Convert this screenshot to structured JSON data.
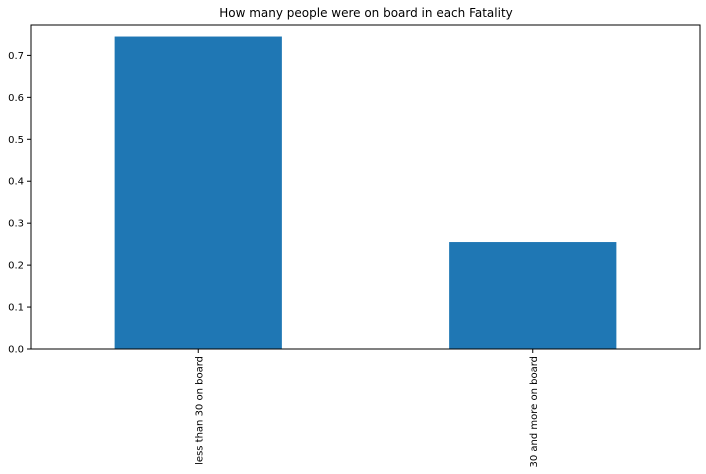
{
  "chart_data": {
    "type": "bar",
    "title": "How many people were on board in each Fatality",
    "xlabel": "",
    "ylabel": "",
    "categories": [
      "less than 30 on board",
      "30 and more on board"
    ],
    "values": [
      0.745,
      0.255
    ],
    "ylim": [
      0,
      0.7725
    ],
    "yticks": [
      0.0,
      0.1,
      0.2,
      0.3,
      0.4,
      0.5,
      0.6,
      0.7
    ],
    "ytick_labels": [
      "0.0",
      "0.1",
      "0.2",
      "0.3",
      "0.4",
      "0.5",
      "0.6",
      "0.7"
    ],
    "grid": false,
    "legend": "none",
    "bar_color": "#1f77b4",
    "x_tick_rotation": 90
  }
}
